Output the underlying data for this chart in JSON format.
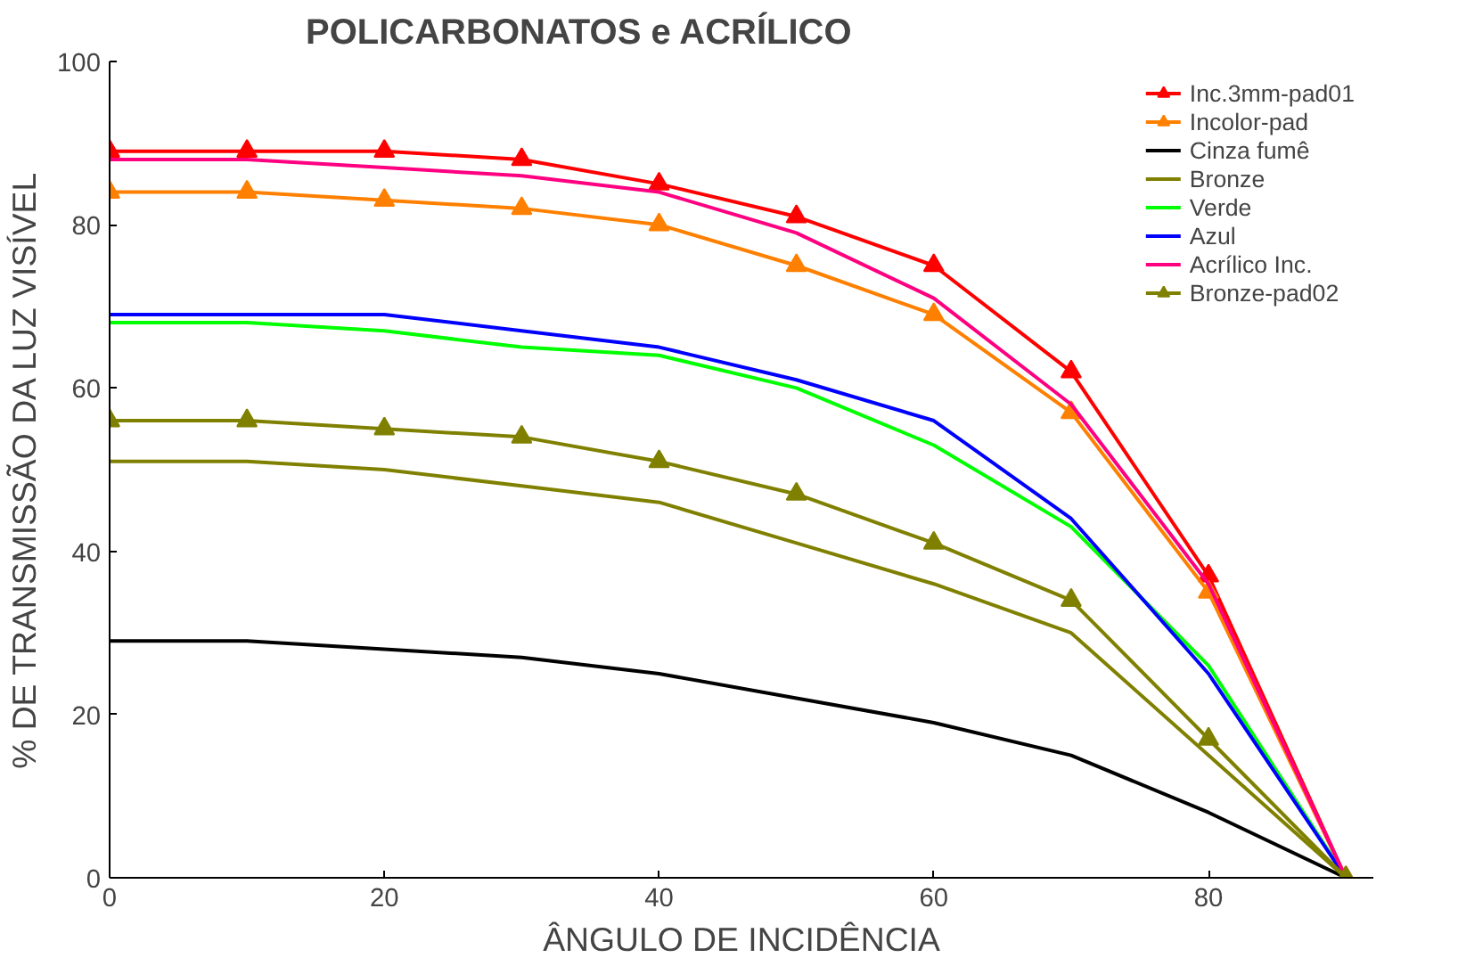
{
  "chart_data": {
    "type": "line",
    "title": "POLICARBONATOS e ACRÍLICO",
    "xlabel": "ÂNGULO DE INCIDÊNCIA",
    "ylabel": "% DE TRANSMISSÃO DA LUZ VISÍVEL",
    "x": [
      0,
      10,
      20,
      30,
      40,
      50,
      60,
      70,
      80,
      90
    ],
    "xlim": [
      0,
      92
    ],
    "xticks": [
      0,
      20,
      40,
      60,
      80
    ],
    "ylim": [
      0,
      100
    ],
    "yticks": [
      0,
      20,
      40,
      60,
      80,
      100
    ],
    "grid": false,
    "legend": "top right",
    "line_style": "solid",
    "series": [
      {
        "name": "Inc.3mm-pad01",
        "color": "#ff0000",
        "marker": "triangle",
        "values": [
          89,
          89,
          89,
          88,
          85,
          81,
          75,
          62,
          37,
          0
        ]
      },
      {
        "name": "Incolor-pad",
        "color": "#ff8000",
        "marker": "triangle",
        "values": [
          84,
          84,
          83,
          82,
          80,
          75,
          69,
          57,
          35,
          0
        ]
      },
      {
        "name": "Cinza fumê",
        "color": "#000000",
        "marker": "none",
        "values": [
          29,
          29,
          28,
          27,
          25,
          22,
          19,
          15,
          8,
          0
        ]
      },
      {
        "name": "Bronze",
        "color": "#808000",
        "marker": "none",
        "values": [
          51,
          51,
          50,
          48,
          46,
          41,
          36,
          30,
          15,
          0
        ]
      },
      {
        "name": "Verde",
        "color": "#00ff00",
        "marker": "none",
        "values": [
          68,
          68,
          67,
          65,
          64,
          60,
          53,
          43,
          26,
          0
        ]
      },
      {
        "name": "Azul",
        "color": "#0000ff",
        "marker": "none",
        "values": [
          69,
          69,
          69,
          67,
          65,
          61,
          56,
          44,
          25,
          0
        ]
      },
      {
        "name": "Acrílico Inc.",
        "color": "#ff0080",
        "marker": "none",
        "values": [
          88,
          88,
          87,
          86,
          84,
          79,
          71,
          58,
          36,
          0
        ]
      },
      {
        "name": "Bronze-pad02",
        "color": "#808000",
        "marker": "triangle",
        "values": [
          56,
          56,
          55,
          54,
          51,
          47,
          41,
          34,
          17,
          0
        ]
      }
    ]
  }
}
